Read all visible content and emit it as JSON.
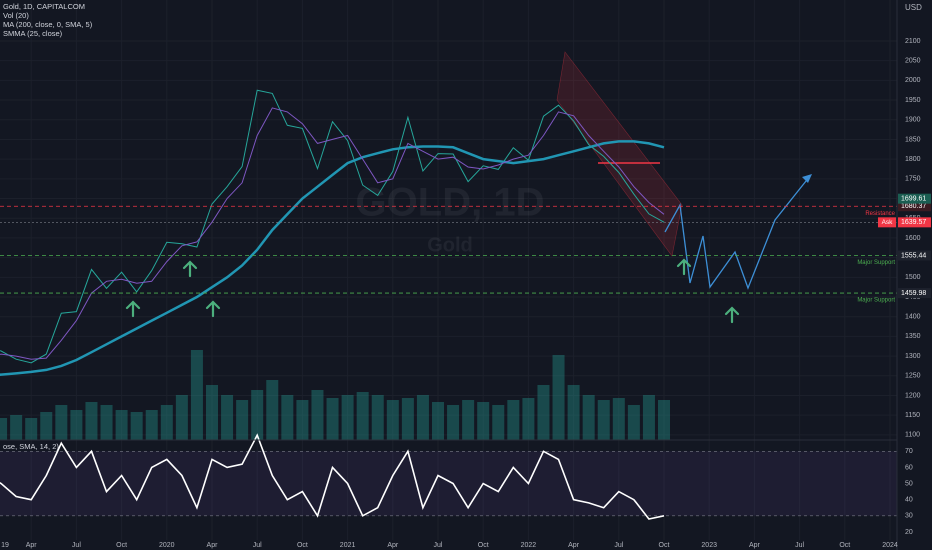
{
  "header": {
    "indicators": [
      "Vol (20)"
    ]
  },
  "watermark": {
    "title": "GOLD, 1D",
    "subtitle": "Gold"
  },
  "chart_data": [
    {
      "type": "line",
      "y_label": "USD",
      "grid": true,
      "x": [
        "2019-01",
        "2019-02",
        "2019-03",
        "2019-04",
        "2019-05",
        "2019-06",
        "2019-07",
        "2019-08",
        "2019-09",
        "2019-10",
        "2019-11",
        "2019-12",
        "2020-01",
        "2020-02",
        "2020-03",
        "2020-04",
        "2020-05",
        "2020-06",
        "2020-07",
        "2020-08",
        "2020-09",
        "2020-10",
        "2020-11",
        "2020-12",
        "2021-01",
        "2021-02",
        "2021-03",
        "2021-04",
        "2021-05",
        "2021-06",
        "2021-07",
        "2021-08",
        "2021-09",
        "2021-10",
        "2021-11",
        "2021-12",
        "2022-01",
        "2022-02",
        "2022-03",
        "2022-04",
        "2022-05",
        "2022-06",
        "2022-07",
        "2022-08",
        "2022-09",
        "2022-10"
      ],
      "xlim": [
        "2019-01",
        "2024-01"
      ],
      "xticks": [
        {
          "value": "2019-01",
          "label": "19"
        },
        {
          "value": "2019-04",
          "label": "Apr"
        },
        {
          "value": "2019-07",
          "label": "Jul"
        },
        {
          "value": "2019-10",
          "label": "Oct"
        },
        {
          "value": "2020-01",
          "label": "2020"
        },
        {
          "value": "2020-04",
          "label": "Apr"
        },
        {
          "value": "2020-07",
          "label": "Jul"
        },
        {
          "value": "2020-10",
          "label": "Oct"
        },
        {
          "value": "2021-01",
          "label": "2021"
        },
        {
          "value": "2021-04",
          "label": "Apr"
        },
        {
          "value": "2021-07",
          "label": "Jul"
        },
        {
          "value": "2021-10",
          "label": "Oct"
        },
        {
          "value": "2022-01",
          "label": "2022"
        },
        {
          "value": "2022-04",
          "label": "Apr"
        },
        {
          "value": "2022-07",
          "label": "Jul"
        },
        {
          "value": "2022-10",
          "label": "Oct"
        },
        {
          "value": "2023-01",
          "label": "2023"
        },
        {
          "value": "2023-04",
          "label": "Apr"
        },
        {
          "value": "2023-07",
          "label": "Jul"
        },
        {
          "value": "2023-10",
          "label": "Oct"
        },
        {
          "value": "2024-01",
          "label": "2024"
        }
      ],
      "ylim": [
        1087,
        2204
      ],
      "yticks": [
        1100,
        1150,
        1200,
        1250,
        1300,
        1350,
        1400,
        1450,
        1500,
        1550,
        1600,
        1650,
        1700,
        1750,
        1800,
        1850,
        1900,
        1950,
        2000,
        2050,
        2100
      ],
      "series": [
        {
          "name": "Gold, 1D, CAPITALCOM",
          "color": "#26a69a",
          "width": 1,
          "values": [
            1320,
            1313,
            1292,
            1283,
            1305,
            1409,
            1413,
            1520,
            1472,
            1513,
            1463,
            1517,
            1589,
            1585,
            1577,
            1686,
            1730,
            1781,
            1975,
            1967,
            1886,
            1878,
            1776,
            1895,
            1847,
            1734,
            1708,
            1769,
            1906,
            1770,
            1814,
            1813,
            1743,
            1783,
            1774,
            1829,
            1797,
            1909,
            1937,
            1897,
            1837,
            1807,
            1766,
            1711,
            1661,
            1640
          ]
        },
        {
          "name": "MA (200, close, 0, SMA, 5)",
          "color": "#2196b3",
          "width": 2.5,
          "values": [
            1250,
            1253,
            1256,
            1260,
            1265,
            1275,
            1290,
            1310,
            1330,
            1350,
            1370,
            1390,
            1410,
            1430,
            1450,
            1475,
            1500,
            1530,
            1570,
            1620,
            1660,
            1700,
            1730,
            1760,
            1790,
            1805,
            1815,
            1825,
            1830,
            1832,
            1832,
            1830,
            1815,
            1800,
            1795,
            1790,
            1795,
            1800,
            1810,
            1820,
            1830,
            1840,
            1845,
            1845,
            1840,
            1830
          ]
        },
        {
          "name": "SMMA (25, close)",
          "color": "#7e57c2",
          "width": 1,
          "values": [
            1295,
            1305,
            1300,
            1292,
            1295,
            1340,
            1390,
            1460,
            1490,
            1495,
            1485,
            1490,
            1540,
            1580,
            1590,
            1640,
            1700,
            1740,
            1860,
            1930,
            1920,
            1890,
            1840,
            1850,
            1860,
            1800,
            1740,
            1750,
            1840,
            1820,
            1800,
            1805,
            1780,
            1775,
            1785,
            1800,
            1810,
            1860,
            1920,
            1910,
            1860,
            1820,
            1780,
            1730,
            1690,
            1660
          ]
        }
      ],
      "levels": [
        {
          "label": "Resistance",
          "value": 1680.37,
          "color": "#f23645"
        },
        {
          "label": "Major Support",
          "value": 1555.44,
          "color": "#4caf50"
        },
        {
          "label": "Major Support",
          "value": 1459.98,
          "color": "#4caf50"
        }
      ],
      "price_tags": [
        {
          "value": 1699.61,
          "color": "#1b5e52"
        },
        {
          "name": "Ask",
          "value": 1639.57,
          "color": "#f23645"
        }
      ]
    },
    {
      "type": "bar",
      "x_ref": "price",
      "color": "#26a69a",
      "ylim": [
        0,
        100
      ],
      "values": [
        20,
        22,
        25,
        22,
        28,
        35,
        30,
        38,
        35,
        30,
        28,
        30,
        35,
        45,
        90,
        55,
        45,
        40,
        50,
        60,
        45,
        40,
        50,
        42,
        45,
        48,
        45,
        40,
        42,
        45,
        38,
        35,
        40,
        38,
        35,
        40,
        42,
        55,
        85,
        55,
        45,
        40,
        42,
        35,
        45,
        40
      ]
    },
    {
      "type": "line",
      "title": "ose, SMA, 14, 2)",
      "color": "#ffffff",
      "band": [
        30,
        70
      ],
      "ylim": [
        15,
        77
      ],
      "yticks": [
        20,
        30,
        40,
        50,
        60,
        70
      ],
      "values": [
        55,
        50,
        42,
        40,
        55,
        75,
        60,
        70,
        45,
        55,
        40,
        60,
        65,
        55,
        35,
        65,
        60,
        62,
        80,
        55,
        40,
        45,
        30,
        60,
        50,
        30,
        35,
        55,
        70,
        35,
        55,
        50,
        35,
        50,
        45,
        60,
        50,
        70,
        65,
        40,
        38,
        35,
        45,
        40,
        28,
        30
      ]
    }
  ]
}
